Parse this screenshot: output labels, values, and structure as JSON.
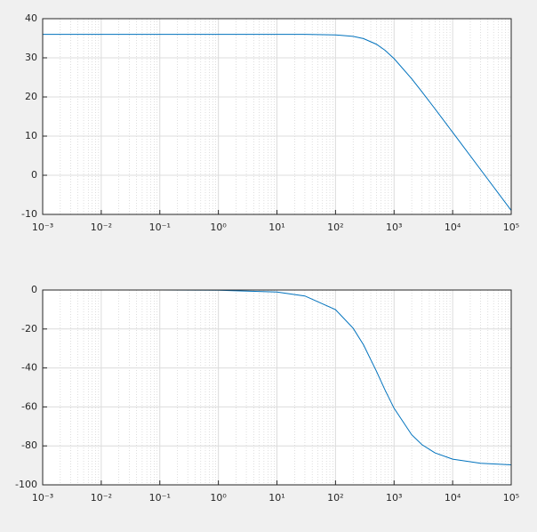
{
  "chart_data": [
    {
      "type": "line",
      "log_x": true,
      "grid": true,
      "minor_grid": true,
      "color": "#0072bd",
      "x": [
        0.001,
        0.01,
        0.1,
        1,
        10,
        30,
        100,
        200,
        300,
        500,
        700,
        1000,
        2000,
        3000,
        5000,
        10000,
        30000,
        100000
      ],
      "values": [
        36.0,
        36.0,
        36.0,
        36.0,
        36.0,
        35.99,
        35.86,
        35.48,
        34.91,
        33.47,
        31.93,
        29.8,
        24.65,
        21.3,
        16.96,
        10.98,
        1.45,
        -9.0
      ],
      "xlim": [
        0.001,
        100000
      ],
      "xticks": [
        {
          "value": 0.001,
          "label": "10⁻³"
        },
        {
          "value": 0.01,
          "label": "10⁻²"
        },
        {
          "value": 0.1,
          "label": "10⁻¹"
        },
        {
          "value": 1,
          "label": "10⁰"
        },
        {
          "value": 10,
          "label": "10¹"
        },
        {
          "value": 100,
          "label": "10²"
        },
        {
          "value": 1000,
          "label": "10³"
        },
        {
          "value": 10000,
          "label": "10⁴"
        },
        {
          "value": 100000,
          "label": "10⁵"
        }
      ],
      "ylim": [
        -10,
        40
      ],
      "yticks": [
        -10,
        0,
        10,
        20,
        30,
        40
      ]
    },
    {
      "type": "line",
      "log_x": true,
      "grid": true,
      "minor_grid": true,
      "color": "#0072bd",
      "x": [
        0.001,
        0.01,
        0.1,
        1,
        10,
        30,
        100,
        200,
        300,
        500,
        700,
        1000,
        2000,
        3000,
        5000,
        10000,
        30000,
        100000
      ],
      "values": [
        0,
        0,
        -0.01,
        -0.1,
        -1.02,
        -3.06,
        -10.09,
        -19.6,
        -28.1,
        -41.7,
        -51.3,
        -60.7,
        -74.3,
        -79.4,
        -83.6,
        -86.8,
        -88.9,
        -89.7
      ],
      "xlim": [
        0.001,
        100000
      ],
      "xticks": [
        {
          "value": 0.001,
          "label": "10⁻³"
        },
        {
          "value": 0.01,
          "label": "10⁻²"
        },
        {
          "value": 0.1,
          "label": "10⁻¹"
        },
        {
          "value": 1,
          "label": "10⁰"
        },
        {
          "value": 10,
          "label": "10¹"
        },
        {
          "value": 100,
          "label": "10²"
        },
        {
          "value": 1000,
          "label": "10³"
        },
        {
          "value": 10000,
          "label": "10⁴"
        },
        {
          "value": 100000,
          "label": "10⁵"
        }
      ],
      "ylim": [
        -100,
        0
      ],
      "yticks": [
        -100,
        -80,
        -60,
        -40,
        -20,
        0
      ]
    }
  ]
}
